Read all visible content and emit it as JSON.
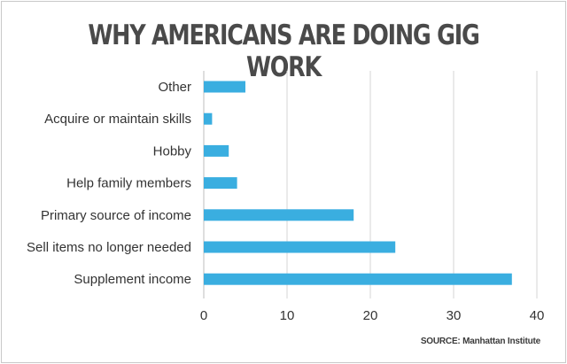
{
  "chart_data": {
    "type": "bar",
    "orientation": "horizontal",
    "title": "WHY AMERICANS ARE DOING GIG WORK",
    "categories": [
      "Other",
      "Acquire or maintain skills",
      "Hobby",
      "Help family members",
      "Primary source of income",
      "Sell items no longer needed",
      "Supplement income"
    ],
    "values": [
      5,
      1,
      3,
      4,
      18,
      23,
      37
    ],
    "xlim": [
      0,
      40
    ],
    "xticks": [
      0,
      10,
      20,
      30,
      40
    ],
    "xlabel": "",
    "ylabel": "",
    "grid": "vertical",
    "bar_color": "#3aaee0",
    "source": "SOURCE: Manhattan Institute"
  }
}
